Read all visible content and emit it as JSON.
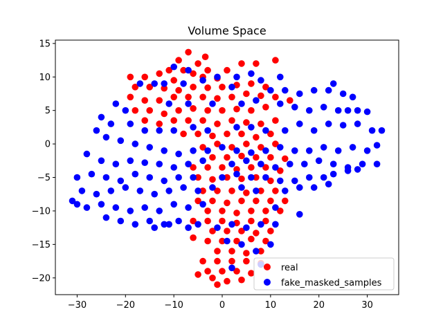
{
  "chart_data": {
    "type": "scatter",
    "title": "Volume Space",
    "xlabel": "",
    "ylabel": "",
    "xlim": [
      -34.5,
      36.5
    ],
    "ylim": [
      -22.5,
      15.5
    ],
    "xticks": [
      -30,
      -20,
      -10,
      0,
      10,
      20,
      30
    ],
    "yticks": [
      -20,
      -15,
      -10,
      -5,
      0,
      5,
      10,
      15
    ],
    "grid": false,
    "legend_position": "lower-right",
    "series": [
      {
        "name": "real",
        "color": "#ff0000",
        "points": [
          [
            -7,
            13.7
          ],
          [
            -3.5,
            13
          ],
          [
            -9,
            12.5
          ],
          [
            -5,
            12
          ],
          [
            -11,
            11
          ],
          [
            -8,
            11
          ],
          [
            -3,
            11
          ],
          [
            1,
            11
          ],
          [
            -13,
            10.5
          ],
          [
            -19,
            10
          ],
          [
            -16,
            10
          ],
          [
            -6,
            10.5
          ],
          [
            -10,
            9.5
          ],
          [
            4,
            12
          ],
          [
            7,
            12
          ],
          [
            11,
            12.5
          ],
          [
            -4,
            10
          ],
          [
            -1,
            9.8
          ],
          [
            -18,
            8.5
          ],
          [
            -15,
            8.5
          ],
          [
            -12,
            8.3
          ],
          [
            -9,
            8
          ],
          [
            -6,
            8.5
          ],
          [
            -3,
            8.4
          ],
          [
            0,
            8.5
          ],
          [
            3,
            8.8
          ],
          [
            6,
            9
          ],
          [
            9,
            8.5
          ],
          [
            -19,
            7
          ],
          [
            -16,
            6.5
          ],
          [
            -13,
            6.5
          ],
          [
            -10,
            7
          ],
          [
            -7,
            7
          ],
          [
            -4,
            7
          ],
          [
            -1,
            6.8
          ],
          [
            2,
            7
          ],
          [
            5,
            7.5
          ],
          [
            8,
            7.2
          ],
          [
            11,
            7
          ],
          [
            14,
            6.5
          ],
          [
            -18,
            5
          ],
          [
            -15,
            5
          ],
          [
            -12,
            4.5
          ],
          [
            -9,
            5
          ],
          [
            -6,
            5.3
          ],
          [
            -3,
            5
          ],
          [
            0,
            5
          ],
          [
            3,
            5.2
          ],
          [
            6,
            5
          ],
          [
            9,
            5.5
          ],
          [
            -16,
            3.5
          ],
          [
            -13,
            3
          ],
          [
            -10,
            3.5
          ],
          [
            -7,
            3.5
          ],
          [
            -4,
            3.5
          ],
          [
            -1,
            3
          ],
          [
            2,
            3.5
          ],
          [
            5,
            3.2
          ],
          [
            8,
            3
          ],
          [
            11,
            3.5
          ],
          [
            -8,
            1.5
          ],
          [
            -5,
            1.5
          ],
          [
            -2,
            1.2
          ],
          [
            1,
            1.5
          ],
          [
            4,
            1.5
          ],
          [
            7,
            1
          ],
          [
            10,
            1.5
          ],
          [
            -4,
            -0.5
          ],
          [
            -1,
            0
          ],
          [
            2,
            -0.5
          ],
          [
            5,
            0
          ],
          [
            8,
            -0.5
          ],
          [
            11,
            0
          ],
          [
            -2,
            -2
          ],
          [
            1,
            -2
          ],
          [
            4,
            -1.8
          ],
          [
            7,
            -2
          ],
          [
            10,
            -2
          ],
          [
            13,
            -2.2
          ],
          [
            -6,
            -3.5
          ],
          [
            -3,
            -3.5
          ],
          [
            0,
            -3.5
          ],
          [
            3,
            -3.8
          ],
          [
            6,
            -3.5
          ],
          [
            9,
            -3.5
          ],
          [
            12,
            -4
          ],
          [
            -5,
            -5
          ],
          [
            -2,
            -5.3
          ],
          [
            1,
            -5
          ],
          [
            4,
            -5.2
          ],
          [
            7,
            -5
          ],
          [
            10,
            -5.5
          ],
          [
            -4,
            -7
          ],
          [
            -1,
            -7
          ],
          [
            2,
            -7
          ],
          [
            5,
            -7.3
          ],
          [
            8,
            -7
          ],
          [
            11,
            -7
          ],
          [
            -5,
            -8.5
          ],
          [
            -2,
            -8.5
          ],
          [
            1,
            -8.8
          ],
          [
            4,
            -8.5
          ],
          [
            7,
            -8.5
          ],
          [
            10,
            -8.5
          ],
          [
            13,
            -8.5
          ],
          [
            -3,
            -10
          ],
          [
            0,
            -10
          ],
          [
            3,
            -10.3
          ],
          [
            6,
            -10
          ],
          [
            9,
            -10
          ],
          [
            12,
            -10
          ],
          [
            -6,
            -11.5
          ],
          [
            -3,
            -11.5
          ],
          [
            0,
            -11.5
          ],
          [
            3,
            -11.8
          ],
          [
            6,
            -11.5
          ],
          [
            9,
            -11.5
          ],
          [
            -2,
            -13
          ],
          [
            1,
            -13
          ],
          [
            4,
            -13
          ],
          [
            7,
            -13.3
          ],
          [
            10,
            -13
          ],
          [
            -6,
            -14
          ],
          [
            -3,
            -14.5
          ],
          [
            0,
            -14.5
          ],
          [
            3,
            -14.5
          ],
          [
            6,
            -14.2
          ],
          [
            9,
            -14.5
          ],
          [
            -1,
            -16
          ],
          [
            2,
            -16
          ],
          [
            5,
            -16.3
          ],
          [
            8,
            -16
          ],
          [
            -4,
            -17.5
          ],
          [
            -1,
            -17.5
          ],
          [
            2,
            -17.5
          ],
          [
            5,
            -17.5
          ],
          [
            8,
            -17.8
          ],
          [
            -3,
            -19
          ],
          [
            0,
            -19
          ],
          [
            3,
            -19
          ],
          [
            6,
            -19.3
          ],
          [
            -5,
            -19.5
          ],
          [
            -2,
            -20
          ],
          [
            1,
            -20.5
          ],
          [
            4,
            -20.3
          ],
          [
            -1,
            -21
          ]
        ]
      },
      {
        "name": "fake_masked_samples",
        "color": "#0000ff",
        "points": [
          [
            -10,
            11.5
          ],
          [
            -7,
            11
          ],
          [
            -4,
            9.5
          ],
          [
            -1,
            10
          ],
          [
            3,
            10
          ],
          [
            6,
            10.5
          ],
          [
            8,
            9.5
          ],
          [
            12,
            10
          ],
          [
            -12,
            9
          ],
          [
            -17,
            9
          ],
          [
            -14,
            9
          ],
          [
            -8,
            9
          ],
          [
            2,
            8.5
          ],
          [
            10,
            8
          ],
          [
            13,
            8
          ],
          [
            16,
            7.5
          ],
          [
            19,
            8
          ],
          [
            22,
            8
          ],
          [
            23,
            9
          ],
          [
            25,
            7.5
          ],
          [
            27,
            7
          ],
          [
            -20,
            5
          ],
          [
            -22,
            6
          ],
          [
            -11,
            6
          ],
          [
            -7,
            6
          ],
          [
            -2,
            6
          ],
          [
            4,
            6
          ],
          [
            7,
            6.5
          ],
          [
            12,
            6
          ],
          [
            15,
            5.5
          ],
          [
            18,
            5
          ],
          [
            21,
            5.5
          ],
          [
            24,
            5
          ],
          [
            26,
            5
          ],
          [
            28,
            5
          ],
          [
            30,
            4.8
          ],
          [
            -25,
            4
          ],
          [
            -23,
            3
          ],
          [
            -19,
            3
          ],
          [
            -16,
            2
          ],
          [
            -13,
            2
          ],
          [
            -10,
            2
          ],
          [
            -6,
            2.5
          ],
          [
            -3,
            2
          ],
          [
            3,
            2.5
          ],
          [
            6,
            2.5
          ],
          [
            9,
            2
          ],
          [
            13,
            2
          ],
          [
            16,
            3
          ],
          [
            19,
            2
          ],
          [
            22,
            3
          ],
          [
            25,
            2.8
          ],
          [
            28,
            3
          ],
          [
            31,
            2
          ],
          [
            33,
            2
          ],
          [
            -26,
            2
          ],
          [
            -24,
            1
          ],
          [
            -21,
            0.5
          ],
          [
            -18,
            0
          ],
          [
            -15,
            -0.5
          ],
          [
            -12,
            -1
          ],
          [
            -9,
            -1.5
          ],
          [
            -6,
            -1
          ],
          [
            -3,
            -1
          ],
          [
            0,
            -0.5
          ],
          [
            3,
            -1
          ],
          [
            6,
            -1.3
          ],
          [
            9,
            -1
          ],
          [
            12,
            -0.5
          ],
          [
            15,
            -1
          ],
          [
            18,
            -1
          ],
          [
            21,
            -0.5
          ],
          [
            24,
            -1
          ],
          [
            27,
            -0.5
          ],
          [
            30,
            -1
          ],
          [
            32,
            -0.2
          ],
          [
            -28,
            -1.5
          ],
          [
            -25,
            -2.5
          ],
          [
            -22,
            -3
          ],
          [
            -19,
            -2.5
          ],
          [
            -16,
            -2.8
          ],
          [
            -13,
            -3
          ],
          [
            -10,
            -3.5
          ],
          [
            -7,
            -3
          ],
          [
            -4,
            -2.5
          ],
          [
            2,
            -3
          ],
          [
            5,
            -2.5
          ],
          [
            8,
            -3
          ],
          [
            11,
            -3.5
          ],
          [
            14,
            -3
          ],
          [
            17,
            -3
          ],
          [
            20,
            -2.5
          ],
          [
            23,
            -3
          ],
          [
            26,
            -3.5
          ],
          [
            29,
            -3
          ],
          [
            32,
            -3
          ],
          [
            -30,
            -5
          ],
          [
            -27,
            -4.5
          ],
          [
            -24,
            -5
          ],
          [
            -21,
            -5.5
          ],
          [
            -18,
            -4.5
          ],
          [
            -15,
            -5
          ],
          [
            -12,
            -5.5
          ],
          [
            -9,
            -5
          ],
          [
            -6,
            -5
          ],
          [
            0,
            -5
          ],
          [
            3,
            -4.5
          ],
          [
            6,
            -5
          ],
          [
            9,
            -5
          ],
          [
            12,
            -5.5
          ],
          [
            15,
            -5.5
          ],
          [
            18,
            -5
          ],
          [
            21,
            -5
          ],
          [
            23,
            -4.5
          ],
          [
            26,
            -4
          ],
          [
            28,
            -3.8
          ],
          [
            -31,
            -8.5
          ],
          [
            -29,
            -7
          ],
          [
            -26,
            -7.5
          ],
          [
            -23,
            -7
          ],
          [
            -20,
            -6.5
          ],
          [
            -17,
            -7
          ],
          [
            -14,
            -7.5
          ],
          [
            -11,
            -7
          ],
          [
            -8,
            -6.5
          ],
          [
            -5,
            -7
          ],
          [
            -2,
            -6.5
          ],
          [
            4,
            -6.5
          ],
          [
            7,
            -7
          ],
          [
            13,
            -7
          ],
          [
            16,
            -6.5
          ],
          [
            19,
            -6.5
          ],
          [
            22,
            -6
          ],
          [
            -30,
            -9
          ],
          [
            -28,
            -9.5
          ],
          [
            -25,
            -9
          ],
          [
            -22,
            -9.5
          ],
          [
            -19,
            -10
          ],
          [
            -16,
            -9.5
          ],
          [
            -13,
            -10
          ],
          [
            -10,
            -9
          ],
          [
            -7,
            -9.5
          ],
          [
            -4,
            -9
          ],
          [
            11,
            -9.5
          ],
          [
            16,
            -10.5
          ],
          [
            -24,
            -11
          ],
          [
            -21,
            -11.5
          ],
          [
            -18,
            -12
          ],
          [
            -15,
            -11.5
          ],
          [
            -12,
            -12
          ],
          [
            -9,
            -11.5
          ],
          [
            -5,
            -12
          ],
          [
            -1,
            -12.5
          ],
          [
            2,
            -12
          ],
          [
            5,
            -12.5
          ],
          [
            8,
            -12
          ],
          [
            11,
            -12
          ],
          [
            -14,
            -12.5
          ],
          [
            -11,
            -12
          ],
          [
            -7,
            -12.5
          ],
          [
            1,
            -14.5
          ],
          [
            4,
            -15
          ],
          [
            7,
            -16
          ],
          [
            10,
            -15
          ],
          [
            8,
            -18
          ],
          [
            2,
            -18.5
          ]
        ]
      }
    ]
  }
}
